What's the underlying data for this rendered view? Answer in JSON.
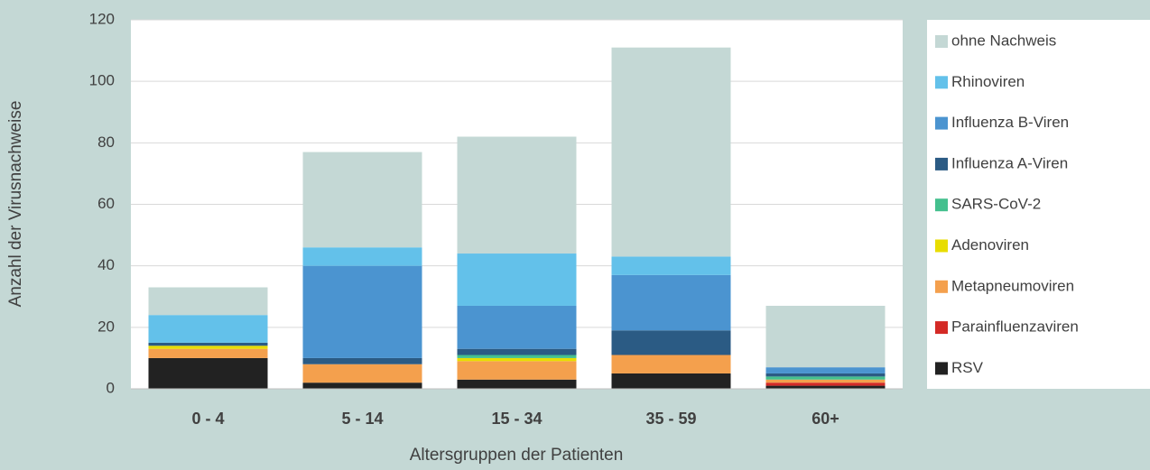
{
  "chart_data": {
    "type": "stacked_bar",
    "x_label": "Altersgruppen der Patienten",
    "y_label": "Anzahl der Virusnachweise",
    "categories": [
      "0 - 4",
      "5 - 14",
      "15 - 34",
      "35 - 59",
      "60+"
    ],
    "series": [
      {
        "name": "RSV",
        "color": "#222222",
        "values": [
          10,
          2,
          3,
          5,
          1
        ]
      },
      {
        "name": "Parainfluenzaviren",
        "color": "#d42a26",
        "values": [
          0,
          0,
          0,
          0,
          1
        ]
      },
      {
        "name": "Metapneumoviren",
        "color": "#f4a04d",
        "values": [
          3,
          6,
          6,
          6,
          1
        ]
      },
      {
        "name": "Adenoviren",
        "color": "#e8dd00",
        "values": [
          1,
          0,
          1,
          0,
          0
        ]
      },
      {
        "name": "SARS-CoV-2",
        "color": "#44c08e",
        "values": [
          0,
          0,
          1,
          0,
          1
        ]
      },
      {
        "name": "Influenza A-Viren",
        "color": "#2b5b84",
        "values": [
          1,
          2,
          2,
          8,
          1
        ]
      },
      {
        "name": "Influenza B-Viren",
        "color": "#4b94d0",
        "values": [
          0,
          30,
          14,
          18,
          2
        ]
      },
      {
        "name": "Rhinoviren",
        "color": "#63c1ea",
        "values": [
          9,
          6,
          17,
          6,
          0
        ]
      },
      {
        "name": "ohne Nachweis",
        "color": "#c4d8d5",
        "values": [
          9,
          31,
          38,
          68,
          20
        ]
      }
    ],
    "ylim": [
      0,
      120
    ],
    "yticks": [
      0,
      20,
      40,
      60,
      80,
      100,
      120
    ],
    "grid": true
  }
}
